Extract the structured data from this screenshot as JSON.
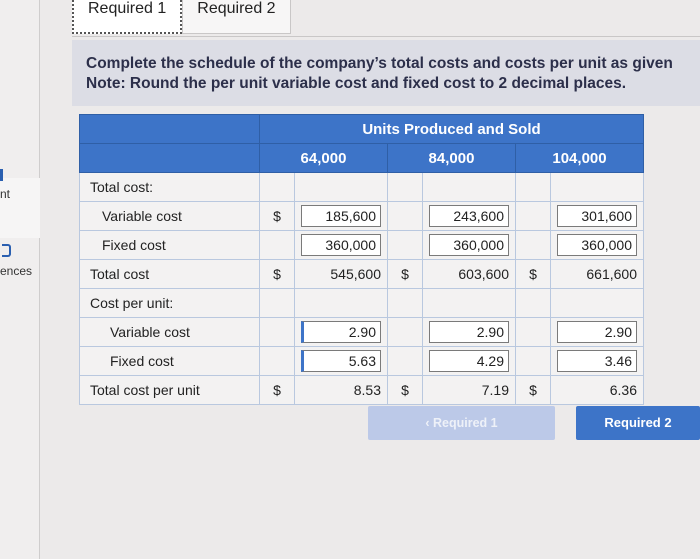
{
  "sidebar": {
    "items": [
      {
        "label": "nt"
      },
      {
        "label": "ences"
      }
    ]
  },
  "tabs": [
    {
      "label": "Required 1",
      "active": true
    },
    {
      "label": "Required 2",
      "active": false
    }
  ],
  "instructions": {
    "line1": "Complete the schedule of the company’s total costs and costs per unit as given",
    "line2": "Note: Round the per unit variable cost and fixed cost to 2 decimal places."
  },
  "table": {
    "group_header": "Units Produced and Sold",
    "columns": [
      "64,000",
      "84,000",
      "104,000"
    ],
    "section_total_cost": "Total cost:",
    "section_per_unit": "Cost per unit:",
    "rows": [
      {
        "label": "Variable cost",
        "symbols": [
          "$",
          "",
          ""
        ],
        "values": [
          "185,600",
          "243,600",
          "301,600"
        ]
      },
      {
        "label": "Fixed cost",
        "symbols": [
          "",
          "",
          ""
        ],
        "values": [
          "360,000",
          "360,000",
          "360,000"
        ]
      },
      {
        "label": "Total cost",
        "symbols": [
          "$",
          "$",
          "$"
        ],
        "values": [
          "545,600",
          "603,600",
          "661,600"
        ]
      },
      {
        "label": "Variable cost",
        "symbols": [
          "",
          "",
          ""
        ],
        "values": [
          "2.90",
          "2.90",
          "2.90"
        ]
      },
      {
        "label": "Fixed cost",
        "symbols": [
          "",
          "",
          ""
        ],
        "values": [
          "5.63",
          "4.29",
          "3.46"
        ]
      },
      {
        "label": "Total cost per unit",
        "symbols": [
          "$",
          "$",
          "$"
        ],
        "values": [
          "8.53",
          "7.19",
          "6.36"
        ]
      }
    ]
  },
  "navigation": {
    "prev_label": "Required 1",
    "prev_icon": "chevron-left-icon",
    "next_label": "Required 2"
  },
  "colors": {
    "accent": "#3d74c8",
    "banner_bg": "#dcdde5",
    "banner_text": "#2c2f4a"
  }
}
